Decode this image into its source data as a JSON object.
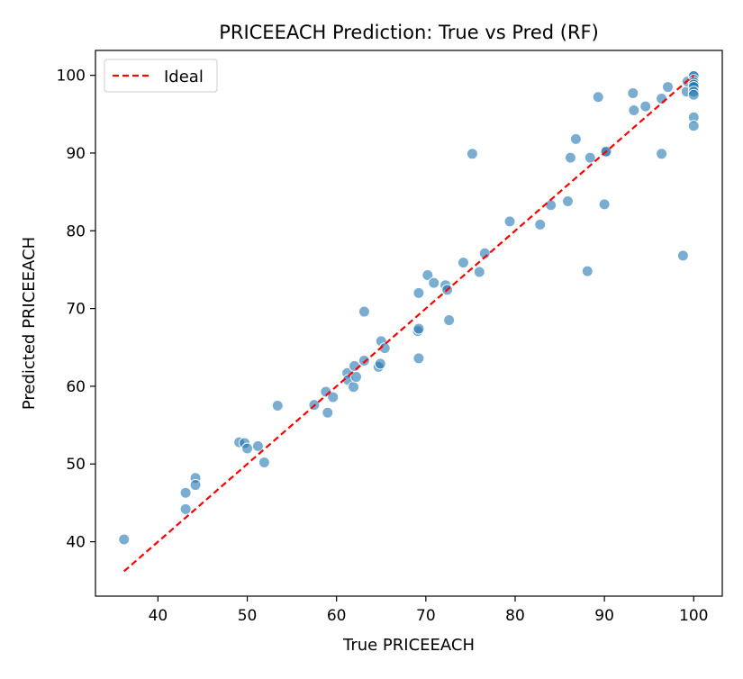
{
  "chart_data": {
    "type": "scatter",
    "title": "PRICEEACH Prediction: True vs Pred (RF)",
    "xlabel": "True PRICEEACH",
    "ylabel": "Predicted PRICEEACH",
    "xlim": [
      33.0,
      103.2
    ],
    "ylim": [
      33.0,
      103.2
    ],
    "xticks": [
      40,
      50,
      60,
      70,
      80,
      90,
      100
    ],
    "yticks": [
      40,
      50,
      60,
      70,
      80,
      90,
      100
    ],
    "grid": false,
    "legend": {
      "placement": "upper-left",
      "entries": [
        {
          "label": "Ideal",
          "series": "ideal"
        }
      ]
    },
    "colors": {
      "points": "#1f77b4",
      "ideal": "#ff0000",
      "axes": "#000000"
    },
    "ideal_line": {
      "name": "Ideal",
      "x": [
        36.2,
        100.0
      ],
      "y": [
        36.2,
        100.0
      ],
      "style": "dashed"
    },
    "series": [
      {
        "points": [
          [
            36.2,
            40.3
          ],
          [
            43.1,
            46.3
          ],
          [
            43.1,
            44.2
          ],
          [
            44.2,
            48.2
          ],
          [
            44.2,
            47.3
          ],
          [
            49.1,
            52.8
          ],
          [
            49.7,
            52.7
          ],
          [
            50.0,
            52.0
          ],
          [
            51.2,
            52.3
          ],
          [
            51.9,
            50.2
          ],
          [
            53.4,
            57.5
          ],
          [
            57.5,
            57.6
          ],
          [
            58.8,
            59.3
          ],
          [
            59.0,
            56.6
          ],
          [
            59.6,
            58.6
          ],
          [
            61.2,
            61.7
          ],
          [
            61.3,
            60.8
          ],
          [
            61.9,
            59.9
          ],
          [
            62.0,
            62.6
          ],
          [
            62.2,
            61.2
          ],
          [
            63.1,
            63.3
          ],
          [
            63.1,
            69.6
          ],
          [
            64.7,
            62.5
          ],
          [
            64.9,
            62.9
          ],
          [
            65.0,
            65.8
          ],
          [
            65.4,
            64.9
          ],
          [
            69.1,
            67.1
          ],
          [
            69.2,
            67.4
          ],
          [
            69.2,
            72.0
          ],
          [
            69.2,
            63.6
          ],
          [
            70.2,
            74.3
          ],
          [
            70.9,
            73.3
          ],
          [
            72.2,
            73.0
          ],
          [
            72.4,
            72.4
          ],
          [
            72.6,
            68.5
          ],
          [
            74.2,
            75.9
          ],
          [
            75.2,
            89.9
          ],
          [
            76.0,
            74.7
          ],
          [
            76.6,
            77.1
          ],
          [
            79.4,
            81.2
          ],
          [
            82.8,
            80.8
          ],
          [
            84.0,
            83.3
          ],
          [
            85.9,
            83.8
          ],
          [
            86.2,
            89.4
          ],
          [
            86.8,
            91.8
          ],
          [
            88.1,
            74.8
          ],
          [
            88.4,
            89.4
          ],
          [
            89.3,
            97.2
          ],
          [
            90.0,
            83.4
          ],
          [
            90.1,
            90.1
          ],
          [
            90.2,
            90.2
          ],
          [
            93.2,
            97.7
          ],
          [
            93.3,
            95.5
          ],
          [
            94.6,
            96.0
          ],
          [
            96.4,
            97.0
          ],
          [
            96.4,
            89.9
          ],
          [
            97.1,
            98.5
          ],
          [
            98.8,
            76.8
          ],
          [
            99.2,
            97.9
          ],
          [
            99.3,
            99.2
          ],
          [
            100.0,
            100.0
          ],
          [
            100.0,
            99.9
          ],
          [
            100.0,
            99.4
          ],
          [
            100.0,
            99.1
          ],
          [
            100.0,
            98.8
          ],
          [
            100.0,
            98.5
          ],
          [
            100.0,
            97.9
          ],
          [
            100.0,
            97.5
          ],
          [
            100.0,
            94.6
          ],
          [
            100.0,
            93.5
          ]
        ]
      }
    ]
  }
}
